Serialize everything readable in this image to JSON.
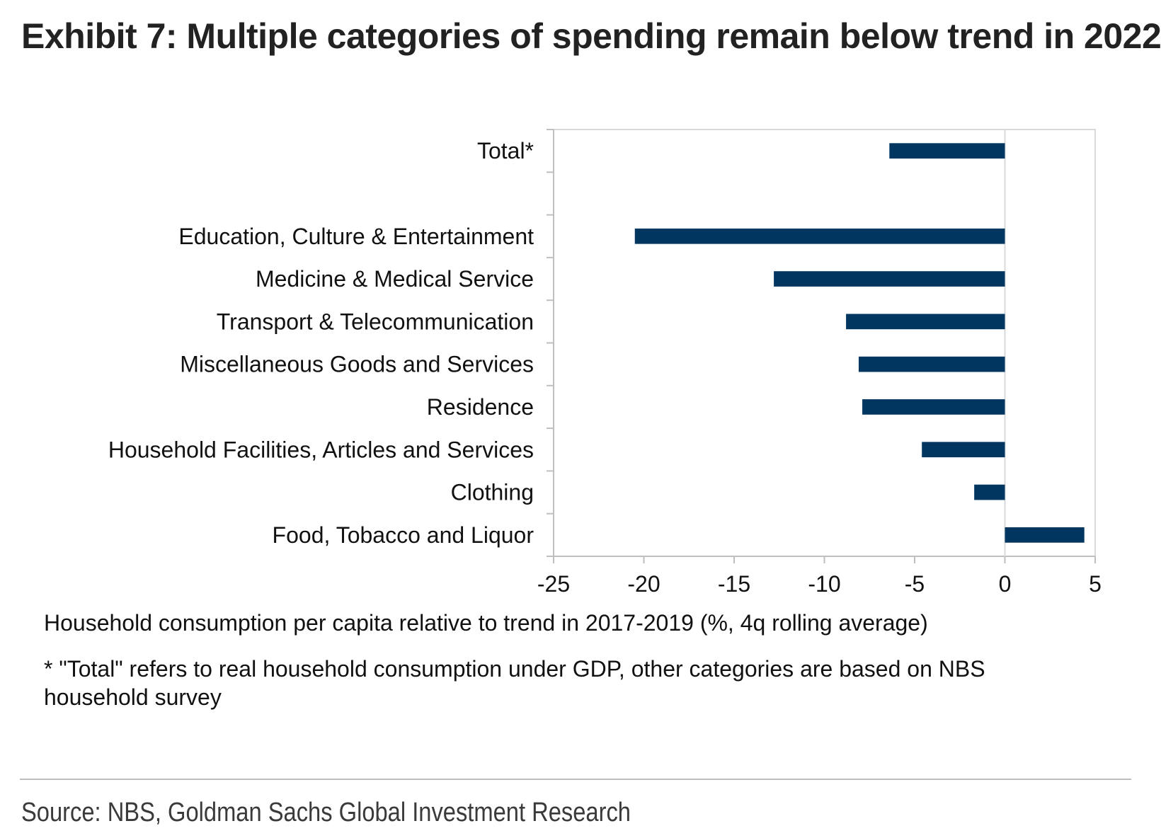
{
  "title": "Exhibit 7: Multiple categories of spending remain below trend in 2022",
  "chart_data": {
    "type": "bar",
    "orientation": "horizontal",
    "categories": [
      "Total*",
      "",
      "Education, Culture & Entertainment",
      "Medicine & Medical Service",
      "Transport & Telecommunication",
      "Miscellaneous Goods and Services",
      "Residence",
      "Household Facilities, Articles and Services",
      "Clothing",
      "Food, Tobacco and Liquor"
    ],
    "values": [
      -6.4,
      null,
      -20.5,
      -12.8,
      -8.8,
      -8.1,
      -7.9,
      -4.6,
      -1.7,
      4.4
    ],
    "xlim": [
      -25,
      5
    ],
    "xticks": [
      -25,
      -20,
      -15,
      -10,
      -5,
      0,
      5
    ],
    "xlabel": "Household consumption per capita relative to trend in 2017-2019 (%, 4q rolling average)",
    "ylabel": "",
    "bar_color": "#003660",
    "grid": false,
    "legend": "none"
  },
  "footnote": "* \"Total\" refers to real household consumption under GDP, other categories are based on NBS household survey",
  "source": "Source: NBS, Goldman Sachs Global Investment Research"
}
